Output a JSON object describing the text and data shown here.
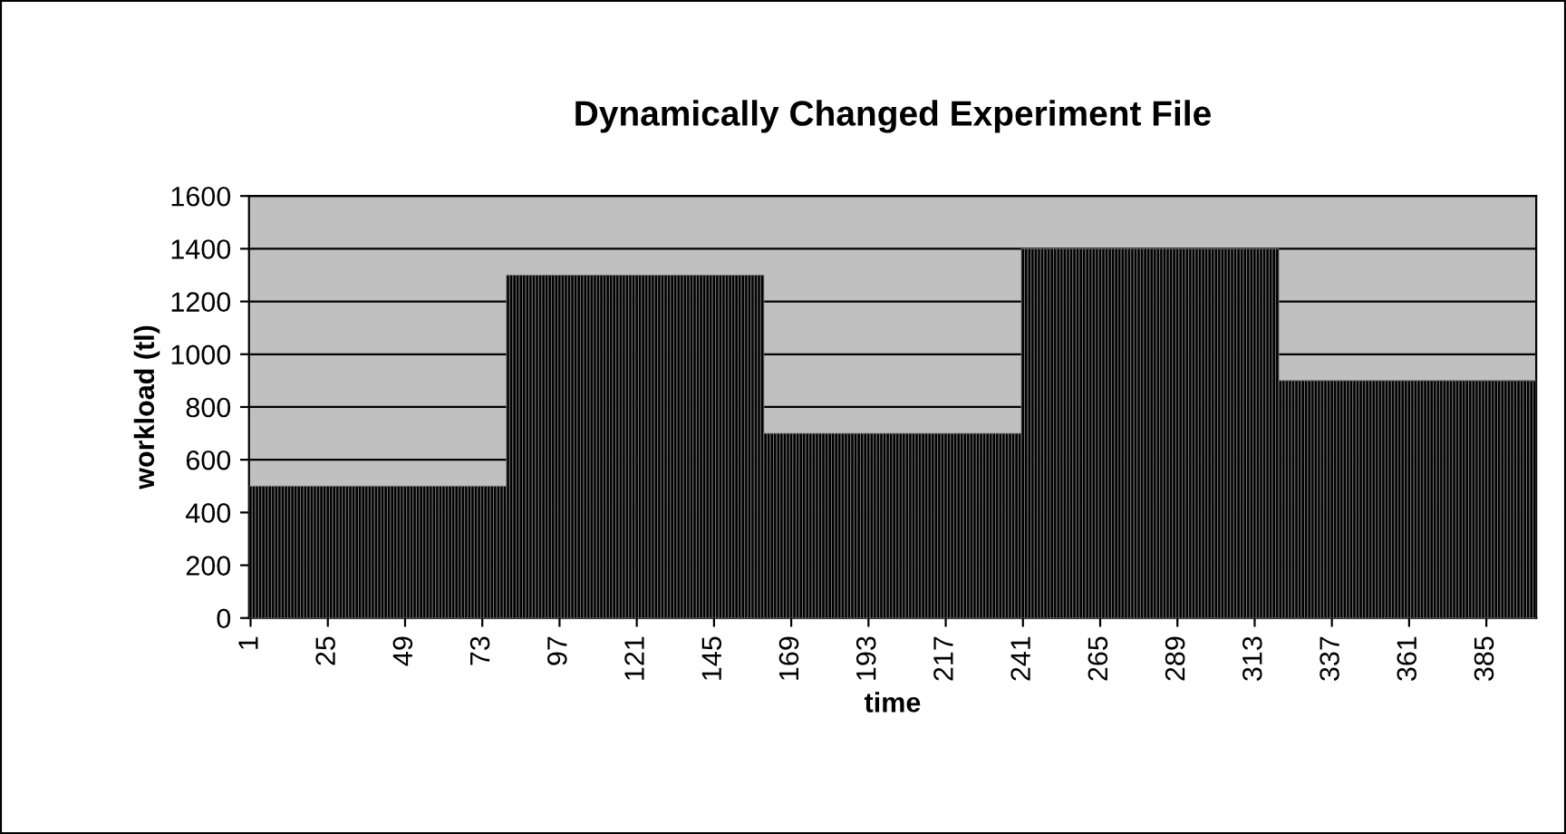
{
  "chart_data": {
    "type": "bar",
    "title": "Dynamically Changed Experiment File",
    "xlabel": "time",
    "ylabel": "workload (tl)",
    "categories": [
      "1",
      null,
      null,
      null,
      null,
      null,
      null,
      null,
      null,
      null,
      null,
      null,
      null,
      null,
      null,
      null,
      null,
      null,
      null,
      null,
      null,
      null,
      null,
      null,
      "25",
      null,
      null,
      null,
      null,
      null,
      null,
      null,
      null,
      null,
      null,
      null,
      null,
      null,
      null,
      null,
      null,
      null,
      null,
      null,
      null,
      null,
      null,
      null,
      "49",
      null,
      null,
      null,
      null,
      null,
      null,
      null,
      null,
      null,
      null,
      null,
      null,
      null,
      null,
      null,
      null,
      null,
      null,
      null,
      null,
      null,
      null,
      null,
      "73",
      null,
      null,
      null,
      null,
      null,
      null,
      null,
      null,
      null,
      null,
      null,
      null,
      null,
      null,
      null,
      null,
      null,
      null,
      null,
      null,
      null,
      null,
      null,
      "97",
      null,
      null,
      null,
      null,
      null,
      null,
      null,
      null,
      null,
      null,
      null,
      null,
      null,
      null,
      null,
      null,
      null,
      null,
      null,
      null,
      null,
      null,
      null,
      "121",
      null,
      null,
      null,
      null,
      null,
      null,
      null,
      null,
      null,
      null,
      null,
      null,
      null,
      null,
      null,
      null,
      null,
      null,
      null,
      null,
      null,
      null,
      null,
      "145",
      null,
      null,
      null,
      null,
      null,
      null,
      null,
      null,
      null,
      null,
      null,
      null,
      null,
      null,
      null,
      null,
      null,
      null,
      null,
      null,
      null,
      null,
      null,
      "169",
      null,
      null,
      null,
      null,
      null,
      null,
      null,
      null,
      null,
      null,
      null,
      null,
      null,
      null,
      null,
      null,
      null,
      null,
      null,
      null,
      null,
      null,
      null,
      "193",
      null,
      null,
      null,
      null,
      null,
      null,
      null,
      null,
      null,
      null,
      null,
      null,
      null,
      null,
      null,
      null,
      null,
      null,
      null,
      null,
      null,
      null,
      null,
      "217",
      null,
      null,
      null,
      null,
      null,
      null,
      null,
      null,
      null,
      null,
      null,
      null,
      null,
      null,
      null,
      null,
      null,
      null,
      null,
      null,
      null,
      null,
      null,
      "241",
      null,
      null,
      null,
      null,
      null,
      null,
      null,
      null,
      null,
      null,
      null,
      null,
      null,
      null,
      null,
      null,
      null,
      null,
      null,
      null,
      null,
      null,
      null,
      "265",
      null,
      null,
      null,
      null,
      null,
      null,
      null,
      null,
      null,
      null,
      null,
      null,
      null,
      null,
      null,
      null,
      null,
      null,
      null,
      null,
      null,
      null,
      null,
      "289",
      null,
      null,
      null,
      null,
      null,
      null,
      null,
      null,
      null,
      null,
      null,
      null,
      null,
      null,
      null,
      null,
      null,
      null,
      null,
      null,
      null,
      null,
      null,
      "313",
      null,
      null,
      null,
      null,
      null,
      null,
      null,
      null,
      null,
      null,
      null,
      null,
      null,
      null,
      null,
      null,
      null,
      null,
      null,
      null,
      null,
      null,
      null,
      "337",
      null,
      null,
      null,
      null,
      null,
      null,
      null,
      null,
      null,
      null,
      null,
      null,
      null,
      null,
      null,
      null,
      null,
      null,
      null,
      null,
      null,
      null,
      null,
      "361",
      null,
      null,
      null,
      null,
      null,
      null,
      null,
      null,
      null,
      null,
      null,
      null,
      null,
      null,
      null,
      null,
      null,
      null,
      null,
      null,
      null,
      null,
      null,
      "385",
      null,
      null,
      null,
      null,
      null,
      null,
      null,
      null,
      null,
      null,
      null,
      null,
      null,
      null,
      null
    ],
    "values": [
      500,
      500,
      500,
      500,
      500,
      500,
      500,
      500,
      500,
      500,
      500,
      500,
      500,
      500,
      500,
      500,
      500,
      500,
      500,
      500,
      500,
      500,
      500,
      500,
      500,
      500,
      500,
      500,
      500,
      500,
      500,
      500,
      500,
      500,
      500,
      500,
      500,
      500,
      500,
      500,
      500,
      500,
      500,
      500,
      500,
      500,
      500,
      500,
      500,
      500,
      500,
      500,
      500,
      500,
      500,
      500,
      500,
      500,
      500,
      500,
      500,
      500,
      500,
      500,
      500,
      500,
      500,
      500,
      500,
      500,
      500,
      500,
      500,
      500,
      500,
      500,
      500,
      500,
      500,
      500,
      1300,
      1300,
      1300,
      1300,
      1300,
      1300,
      1300,
      1300,
      1300,
      1300,
      1300,
      1300,
      1300,
      1300,
      1300,
      1300,
      1300,
      1300,
      1300,
      1300,
      1300,
      1300,
      1300,
      1300,
      1300,
      1300,
      1300,
      1300,
      1300,
      1300,
      1300,
      1300,
      1300,
      1300,
      1300,
      1300,
      1300,
      1300,
      1300,
      1300,
      1300,
      1300,
      1300,
      1300,
      1300,
      1300,
      1300,
      1300,
      1300,
      1300,
      1300,
      1300,
      1300,
      1300,
      1300,
      1300,
      1300,
      1300,
      1300,
      1300,
      1300,
      1300,
      1300,
      1300,
      1300,
      1300,
      1300,
      1300,
      1300,
      1300,
      1300,
      1300,
      1300,
      1300,
      1300,
      1300,
      1300,
      1300,
      1300,
      1300,
      700,
      700,
      700,
      700,
      700,
      700,
      700,
      700,
      700,
      700,
      700,
      700,
      700,
      700,
      700,
      700,
      700,
      700,
      700,
      700,
      700,
      700,
      700,
      700,
      700,
      700,
      700,
      700,
      700,
      700,
      700,
      700,
      700,
      700,
      700,
      700,
      700,
      700,
      700,
      700,
      700,
      700,
      700,
      700,
      700,
      700,
      700,
      700,
      700,
      700,
      700,
      700,
      700,
      700,
      700,
      700,
      700,
      700,
      700,
      700,
      700,
      700,
      700,
      700,
      700,
      700,
      700,
      700,
      700,
      700,
      700,
      700,
      700,
      700,
      700,
      700,
      700,
      700,
      700,
      700,
      1400,
      1400,
      1400,
      1400,
      1400,
      1400,
      1400,
      1400,
      1400,
      1400,
      1400,
      1400,
      1400,
      1400,
      1400,
      1400,
      1400,
      1400,
      1400,
      1400,
      1400,
      1400,
      1400,
      1400,
      1400,
      1400,
      1400,
      1400,
      1400,
      1400,
      1400,
      1400,
      1400,
      1400,
      1400,
      1400,
      1400,
      1400,
      1400,
      1400,
      1400,
      1400,
      1400,
      1400,
      1400,
      1400,
      1400,
      1400,
      1400,
      1400,
      1400,
      1400,
      1400,
      1400,
      1400,
      1400,
      1400,
      1400,
      1400,
      1400,
      1400,
      1400,
      1400,
      1400,
      1400,
      1400,
      1400,
      1400,
      1400,
      1400,
      1400,
      1400,
      1400,
      1400,
      1400,
      1400,
      1400,
      1400,
      1400,
      1400,
      900,
      900,
      900,
      900,
      900,
      900,
      900,
      900,
      900,
      900,
      900,
      900,
      900,
      900,
      900,
      900,
      900,
      900,
      900,
      900,
      900,
      900,
      900,
      900,
      900,
      900,
      900,
      900,
      900,
      900,
      900,
      900,
      900,
      900,
      900,
      900,
      900,
      900,
      900,
      900,
      900,
      900,
      900,
      900,
      900,
      900,
      900,
      900,
      900,
      900,
      900,
      900,
      900,
      900,
      900,
      900,
      900,
      900,
      900,
      900,
      900,
      900,
      900,
      900,
      900,
      900,
      900,
      900,
      900,
      900,
      900,
      900,
      900,
      900,
      900,
      900,
      900,
      900,
      900,
      900
    ],
    "color": "#000000",
    "ylim": [
      0,
      1600
    ],
    "yticks": [
      0,
      200,
      400,
      600,
      800,
      1000,
      1200,
      1400,
      1600
    ],
    "grid": "y",
    "legend": false
  }
}
